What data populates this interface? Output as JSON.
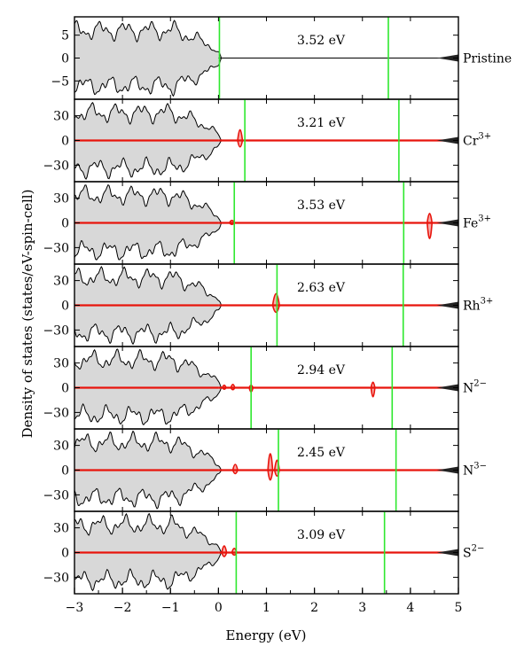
{
  "chart_data": {
    "type": "area",
    "xlabel": "Energy (eV)",
    "ylabel": "Density of states (states/eV-spin-cell)",
    "xlim": [
      -3,
      5
    ],
    "x_ticks": [
      -3,
      -2,
      -1,
      0,
      1,
      2,
      3,
      4,
      5
    ],
    "fermi_level_eV": 0,
    "panels": [
      {
        "label": "Pristine",
        "label_base": "Pristine",
        "label_sup": "",
        "gap_label": "3.52 eV",
        "ylim": [
          -9,
          9
        ],
        "y_ticks": [
          -5,
          0,
          5
        ],
        "vbm_eV": 0.02,
        "cbm_eV": 3.54,
        "dopant_peaks": []
      },
      {
        "label": "Cr3+",
        "label_base": "Cr",
        "label_sup": "3+",
        "gap_label": "3.21 eV",
        "ylim": [
          -50,
          50
        ],
        "y_ticks": [
          -30,
          0,
          30
        ],
        "vbm_eV": 0.55,
        "cbm_eV": 3.76,
        "dopant_peaks": [
          {
            "x": 0.45,
            "height": 26,
            "width": 0.05
          }
        ]
      },
      {
        "label": "Fe3+",
        "label_base": "Fe",
        "label_sup": "3+",
        "gap_label": "3.53 eV",
        "ylim": [
          -50,
          50
        ],
        "y_ticks": [
          -30,
          0,
          30
        ],
        "vbm_eV": 0.33,
        "cbm_eV": 3.86,
        "dopant_peaks": [
          {
            "x": 0.28,
            "height": 6,
            "width": 0.05
          },
          {
            "x": 4.4,
            "height": -38,
            "width": 0.05
          }
        ]
      },
      {
        "label": "Rh3+",
        "label_base": "Rh",
        "label_sup": "3+",
        "gap_label": "2.63 eV",
        "ylim": [
          -50,
          50
        ],
        "y_ticks": [
          -30,
          0,
          30
        ],
        "vbm_eV": 1.22,
        "cbm_eV": 3.85,
        "dopant_peaks": [
          {
            "x": 1.2,
            "height": 28,
            "width": 0.07
          }
        ]
      },
      {
        "label": "N2-",
        "label_base": "N",
        "label_sup": "2−",
        "gap_label": "2.94 eV",
        "ylim": [
          -50,
          50
        ],
        "y_ticks": [
          -30,
          0,
          30
        ],
        "vbm_eV": 0.68,
        "cbm_eV": 3.62,
        "dopant_peaks": [
          {
            "x": 0.12,
            "height": 6,
            "width": 0.04
          },
          {
            "x": 0.3,
            "height": 8,
            "width": 0.04
          },
          {
            "x": 0.68,
            "height": -10,
            "width": 0.04
          },
          {
            "x": 3.22,
            "height": -22,
            "width": 0.04
          }
        ]
      },
      {
        "label": "N3-",
        "label_base": "N",
        "label_sup": "3−",
        "gap_label": "2.45 eV",
        "ylim": [
          -50,
          50
        ],
        "y_ticks": [
          -30,
          0,
          30
        ],
        "vbm_eV": 1.25,
        "cbm_eV": 3.7,
        "dopant_peaks": [
          {
            "x": 0.35,
            "height": 14,
            "width": 0.05
          },
          {
            "x": 1.08,
            "height": 40,
            "width": 0.05
          },
          {
            "x": 1.22,
            "height": 24,
            "width": 0.05
          }
        ]
      },
      {
        "label": "S2-",
        "label_base": "S",
        "label_sup": "2−",
        "gap_label": "3.09 eV",
        "ylim": [
          -50,
          50
        ],
        "y_ticks": [
          -30,
          0,
          30
        ],
        "vbm_eV": 0.37,
        "cbm_eV": 3.46,
        "dopant_peaks": [
          {
            "x": 0.12,
            "height": 16,
            "width": 0.05
          },
          {
            "x": 0.33,
            "height": 10,
            "width": 0.05
          }
        ]
      }
    ],
    "colors": {
      "total_dos_fill": "#d8d8d8",
      "total_dos_line": "#000000",
      "dopant_dos": "#e8140c",
      "band_edge": "#2ee82e",
      "frame": "#000000"
    },
    "legend": "none",
    "grid": false
  }
}
